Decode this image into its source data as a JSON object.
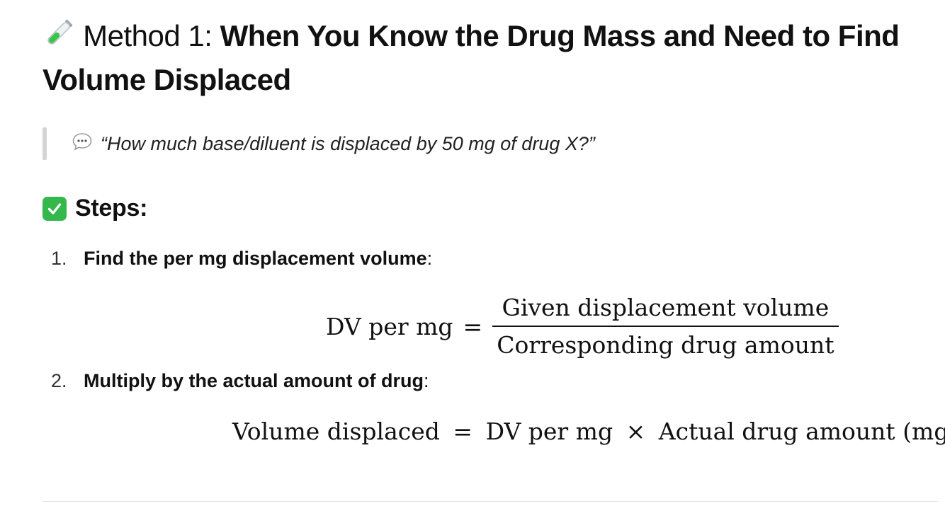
{
  "heading": {
    "icon": "test-tube-icon",
    "lead": "Method 1:",
    "strong": "When You Know the Drug Mass and Need to Find Volume Displaced"
  },
  "quote": {
    "icon": "speech-bubble-icon",
    "text": "“How much base/diluent is displaced by 50 mg of drug X?”"
  },
  "steps_heading": {
    "icon": "check-mark-icon",
    "text": "Steps:"
  },
  "steps": [
    {
      "number": "1.",
      "label": "Find the per mg displacement volume",
      "suffix": ":",
      "equation": {
        "lhs": "DV per mg",
        "eq": "=",
        "numerator": "Given displacement volume",
        "denominator": "Corresponding drug amount"
      }
    },
    {
      "number": "2.",
      "label": "Multiply by the actual amount of drug",
      "suffix": ":",
      "equation": {
        "lhs": "Volume displaced",
        "eq": "=",
        "term1": "DV per mg",
        "op": "×",
        "term2": "Actual drug amount",
        "unit": "(mg)"
      }
    }
  ],
  "colors": {
    "text": "#111111",
    "quote_bar": "#d4d4d4",
    "check_bg": "#35b84b"
  }
}
